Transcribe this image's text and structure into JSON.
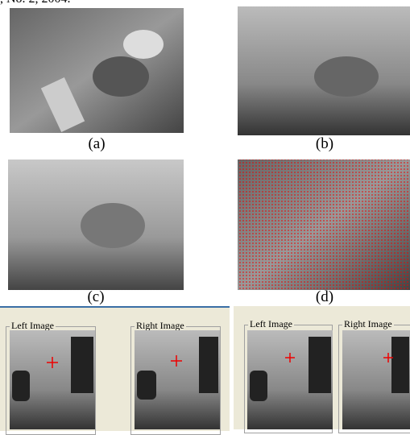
{
  "header": {
    "text": ", No. 2, 2004."
  },
  "figures": [
    {
      "label": "(a)"
    },
    {
      "label": "(b)"
    },
    {
      "label": "(c)"
    },
    {
      "label": "(d)"
    }
  ],
  "screens": [
    {
      "left": "Left Image",
      "right": "Right Image"
    },
    {
      "left": "Left Image",
      "right": "Right Image"
    }
  ]
}
